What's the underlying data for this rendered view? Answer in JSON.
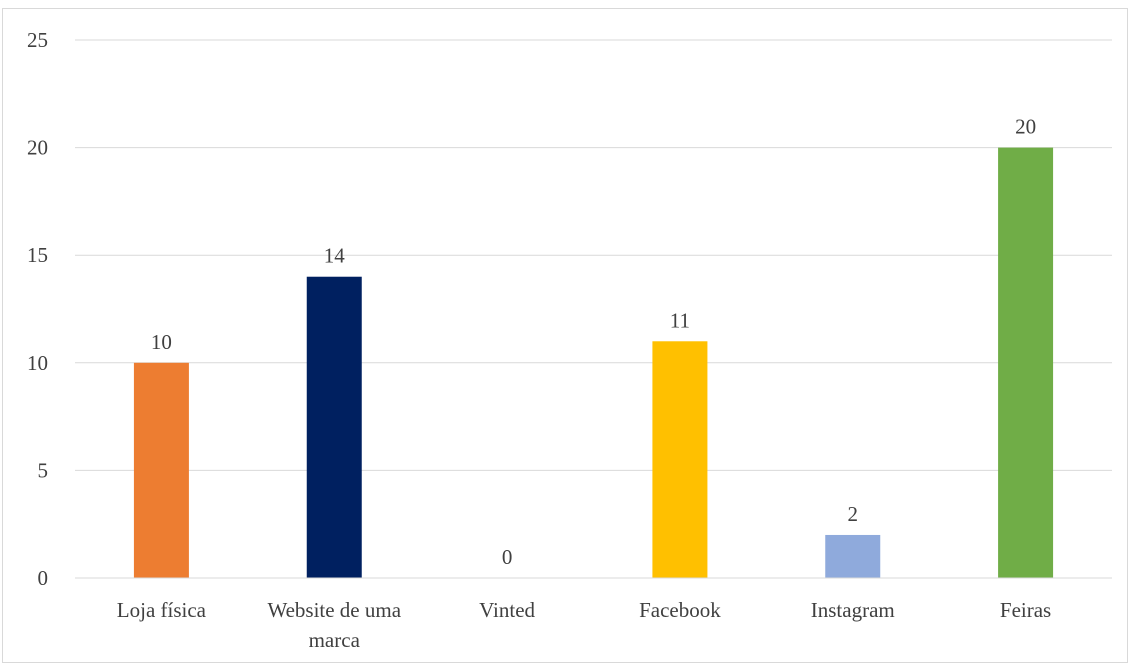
{
  "chart_data": {
    "type": "bar",
    "categories": [
      "Loja física",
      "Website de uma marca",
      "Vinted",
      "Facebook",
      "Instagram",
      "Feiras"
    ],
    "category_lines": [
      [
        "Loja física"
      ],
      [
        "Website de uma",
        "marca"
      ],
      [
        "Vinted"
      ],
      [
        "Facebook"
      ],
      [
        "Instagram"
      ],
      [
        "Feiras"
      ]
    ],
    "values": [
      10,
      14,
      0,
      11,
      2,
      20
    ],
    "data_labels": [
      "10",
      "14",
      "0",
      "11",
      "2",
      "20"
    ],
    "colors": [
      "#ED7D31",
      "#002060",
      "#A5A5A5",
      "#FFC000",
      "#8FAADC",
      "#70AD47"
    ],
    "title": "",
    "xlabel": "",
    "ylabel": "",
    "ylim": [
      0,
      25
    ],
    "yticks": [
      0,
      5,
      10,
      15,
      20,
      25
    ],
    "ytick_labels": [
      "0",
      "5",
      "10",
      "15",
      "20",
      "25"
    ],
    "grid": true,
    "gridline_color": "#d9d9d9",
    "legend": "none"
  }
}
